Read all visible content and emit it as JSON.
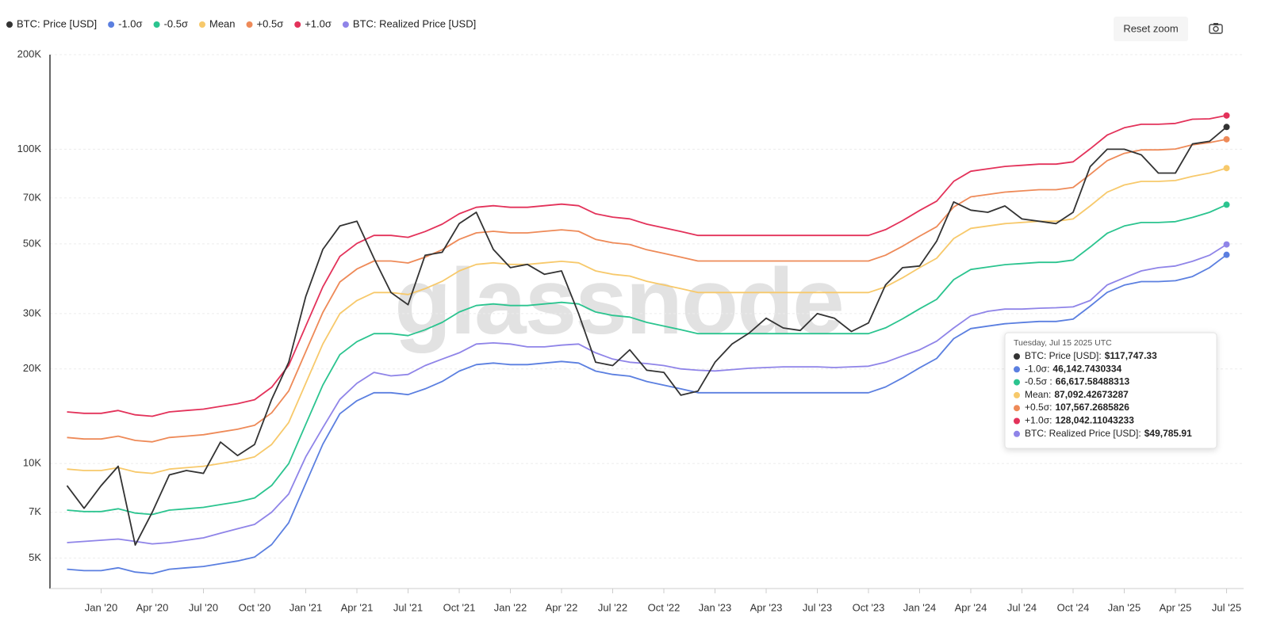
{
  "chart_data": {
    "type": "line",
    "log_scale": true,
    "grid": true,
    "legend": "top-left",
    "x": [
      "2019-11",
      "2019-12",
      "2020-01",
      "2020-02",
      "2020-03",
      "2020-04",
      "2020-05",
      "2020-06",
      "2020-07",
      "2020-08",
      "2020-09",
      "2020-10",
      "2020-11",
      "2020-12",
      "2021-01",
      "2021-02",
      "2021-03",
      "2021-04",
      "2021-05",
      "2021-06",
      "2021-07",
      "2021-08",
      "2021-09",
      "2021-10",
      "2021-11",
      "2021-12",
      "2022-01",
      "2022-02",
      "2022-03",
      "2022-04",
      "2022-05",
      "2022-06",
      "2022-07",
      "2022-08",
      "2022-09",
      "2022-10",
      "2022-11",
      "2022-12",
      "2023-01",
      "2023-02",
      "2023-03",
      "2023-04",
      "2023-05",
      "2023-06",
      "2023-07",
      "2023-08",
      "2023-09",
      "2023-10",
      "2023-11",
      "2023-12",
      "2024-01",
      "2024-02",
      "2024-03",
      "2024-04",
      "2024-05",
      "2024-06",
      "2024-07",
      "2024-08",
      "2024-09",
      "2024-10",
      "2024-11",
      "2024-12",
      "2025-01",
      "2025-02",
      "2025-03",
      "2025-04",
      "2025-05",
      "2025-06",
      "2025-07"
    ],
    "xlim": [
      "2019-10",
      "2025-08"
    ],
    "xticks": [
      {
        "value": "2020-01",
        "label": "Jan '20"
      },
      {
        "value": "2020-04",
        "label": "Apr '20"
      },
      {
        "value": "2020-07",
        "label": "Jul '20"
      },
      {
        "value": "2020-10",
        "label": "Oct '20"
      },
      {
        "value": "2021-01",
        "label": "Jan '21"
      },
      {
        "value": "2021-04",
        "label": "Apr '21"
      },
      {
        "value": "2021-07",
        "label": "Jul '21"
      },
      {
        "value": "2021-10",
        "label": "Oct '21"
      },
      {
        "value": "2022-01",
        "label": "Jan '22"
      },
      {
        "value": "2022-04",
        "label": "Apr '22"
      },
      {
        "value": "2022-07",
        "label": "Jul '22"
      },
      {
        "value": "2022-10",
        "label": "Oct '22"
      },
      {
        "value": "2023-01",
        "label": "Jan '23"
      },
      {
        "value": "2023-04",
        "label": "Apr '23"
      },
      {
        "value": "2023-07",
        "label": "Jul '23"
      },
      {
        "value": "2023-10",
        "label": "Oct '23"
      },
      {
        "value": "2024-01",
        "label": "Jan '24"
      },
      {
        "value": "2024-04",
        "label": "Apr '24"
      },
      {
        "value": "2024-07",
        "label": "Jul '24"
      },
      {
        "value": "2024-10",
        "label": "Oct '24"
      },
      {
        "value": "2025-01",
        "label": "Jan '25"
      },
      {
        "value": "2025-04",
        "label": "Apr '25"
      },
      {
        "value": "2025-07",
        "label": "Jul '25"
      }
    ],
    "ylim": [
      4000,
      200000
    ],
    "yticks": [
      {
        "value": 5000,
        "label": "5K"
      },
      {
        "value": 7000,
        "label": "7K"
      },
      {
        "value": 10000,
        "label": "10K"
      },
      {
        "value": 20000,
        "label": "20K"
      },
      {
        "value": 30000,
        "label": "30K"
      },
      {
        "value": 50000,
        "label": "50K"
      },
      {
        "value": 70000,
        "label": "70K"
      },
      {
        "value": 100000,
        "label": "100K"
      },
      {
        "value": 200000,
        "label": "200K"
      }
    ],
    "series": [
      {
        "name": "BTC: Price [USD]",
        "color": "#333333",
        "values": [
          8500,
          7200,
          8500,
          9800,
          5500,
          7000,
          9200,
          9500,
          9300,
          11700,
          10600,
          11500,
          16000,
          21000,
          34000,
          48000,
          57000,
          59000,
          45000,
          35000,
          32000,
          46000,
          47000,
          58000,
          63000,
          48000,
          42000,
          43000,
          40000,
          41000,
          30000,
          21000,
          20500,
          23000,
          19800,
          19500,
          16500,
          17000,
          21000,
          24000,
          26000,
          29000,
          27000,
          26500,
          30000,
          29000,
          26300,
          28000,
          37000,
          42000,
          42500,
          51000,
          68000,
          64000,
          63000,
          66000,
          60000,
          59000,
          58000,
          63000,
          88000,
          100000,
          100000,
          96000,
          84000,
          84000,
          104000,
          106000,
          117747.33
        ]
      },
      {
        "name": "-1.0σ",
        "color": "#5b7fe0",
        "values": [
          4608,
          4560,
          4560,
          4656,
          4512,
          4464,
          4608,
          4656,
          4704,
          4800,
          4896,
          5040,
          5520,
          6480,
          8640,
          11520,
          14400,
          15840,
          16800,
          16800,
          16560,
          17280,
          18240,
          19680,
          20640,
          20880,
          20640,
          20640,
          20880,
          21120,
          20880,
          19680,
          19200,
          18960,
          18240,
          17760,
          17280,
          16800,
          16800,
          16800,
          16800,
          16800,
          16800,
          16800,
          16800,
          16800,
          16800,
          16800,
          17520,
          18720,
          20160,
          21600,
          24960,
          26880,
          27360,
          27840,
          28080,
          28320,
          28320,
          28800,
          31680,
          35040,
          36960,
          37920,
          37920,
          38160,
          39360,
          42000,
          46142.7430334
        ]
      },
      {
        "name": "-0.5σ",
        "color": "#2bc48f",
        "values": [
          7104,
          7030,
          7030,
          7178,
          6956,
          6882,
          7104,
          7178,
          7252,
          7400,
          7548,
          7770,
          8510,
          9990,
          13320,
          17760,
          22200,
          24420,
          25900,
          25900,
          25530,
          26640,
          28120,
          30340,
          31820,
          32190,
          31820,
          31820,
          32190,
          32560,
          32190,
          30340,
          29600,
          29230,
          28120,
          27380,
          26640,
          25900,
          25900,
          25900,
          25900,
          25900,
          25900,
          25900,
          25900,
          25900,
          25900,
          25900,
          27010,
          28860,
          31080,
          33300,
          38480,
          41440,
          42180,
          42920,
          43290,
          43660,
          43660,
          44400,
          48840,
          54020,
          56980,
          58460,
          58460,
          58830,
          60680,
          63000,
          66617.58488313
        ]
      },
      {
        "name": "Mean",
        "color": "#f7c96b",
        "values": [
          9600,
          9500,
          9500,
          9700,
          9400,
          9300,
          9600,
          9700,
          9800,
          10000,
          10200,
          10500,
          11500,
          13500,
          18000,
          24000,
          30000,
          33000,
          35000,
          35000,
          34500,
          36000,
          38000,
          41000,
          43000,
          43500,
          43000,
          43000,
          43500,
          44000,
          43500,
          41000,
          40000,
          39500,
          38000,
          37000,
          36000,
          35000,
          35000,
          35000,
          35000,
          35000,
          35000,
          35000,
          35000,
          35000,
          35000,
          35000,
          36500,
          39000,
          42000,
          45000,
          52000,
          56000,
          57000,
          58000,
          58500,
          59000,
          59000,
          60000,
          66000,
          73000,
          77000,
          79000,
          79000,
          79500,
          82000,
          84000,
          87092.42673287
        ]
      },
      {
        "name": "+0.5σ",
        "color": "#ee8a58",
        "values": [
          12096,
          11970,
          11970,
          12222,
          11844,
          11718,
          12096,
          12222,
          12348,
          12600,
          12852,
          13230,
          14490,
          17010,
          22680,
          30240,
          37800,
          41580,
          44100,
          44100,
          43470,
          45360,
          47880,
          51660,
          54180,
          54810,
          54180,
          54180,
          54810,
          55440,
          54810,
          51660,
          50400,
          49770,
          47880,
          46620,
          45360,
          44100,
          44100,
          44100,
          44100,
          44100,
          44100,
          44100,
          44100,
          44100,
          44100,
          44100,
          45990,
          49140,
          52920,
          56700,
          65520,
          70560,
          71820,
          73080,
          73710,
          74340,
          74340,
          75600,
          83160,
          91980,
          97020,
          99540,
          99540,
          100170,
          103320,
          105000,
          107567.2685826
        ]
      },
      {
        "name": "+1.0σ",
        "color": "#e3325a",
        "values": [
          14592,
          14440,
          14440,
          14744,
          14288,
          14136,
          14592,
          14744,
          14896,
          15200,
          15504,
          15960,
          17480,
          20520,
          27360,
          36480,
          45600,
          50160,
          53200,
          53200,
          52440,
          54720,
          57760,
          62320,
          65360,
          66120,
          65360,
          65360,
          66120,
          66880,
          66120,
          62320,
          60800,
          60040,
          57760,
          56240,
          54720,
          53200,
          53200,
          53200,
          53200,
          53200,
          53200,
          53200,
          53200,
          53200,
          53200,
          53200,
          55480,
          59280,
          63840,
          68400,
          79040,
          85120,
          86640,
          88160,
          88920,
          89680,
          89680,
          91200,
          100320,
          110960,
          117040,
          120080,
          120080,
          120840,
          124640,
          125000,
          128042.11043233
        ]
      },
      {
        "name": "BTC: Realized Price [USD]",
        "color": "#8f84e8",
        "values": [
          5600,
          5650,
          5700,
          5750,
          5650,
          5550,
          5600,
          5700,
          5800,
          6000,
          6200,
          6400,
          7000,
          8000,
          10500,
          13000,
          16000,
          18000,
          19500,
          19000,
          19200,
          20500,
          21500,
          22500,
          24000,
          24200,
          24000,
          23500,
          23500,
          23800,
          24000,
          22500,
          21500,
          21000,
          20800,
          20500,
          20000,
          19800,
          19700,
          19900,
          20100,
          20200,
          20300,
          20300,
          20300,
          20200,
          20300,
          20400,
          21000,
          22000,
          23000,
          24500,
          27000,
          29500,
          30500,
          31000,
          31000,
          31200,
          31300,
          31500,
          33000,
          37000,
          39000,
          41000,
          42000,
          42500,
          44000,
          46000,
          49785.91
        ]
      }
    ],
    "tooltip": {
      "title": "Tuesday, Jul 15 2025 UTC",
      "rows": [
        {
          "label": "BTC: Price [USD]:",
          "value": "$117,747.33"
        },
        {
          "label": "-1.0σ:",
          "value": "46,142.7430334"
        },
        {
          "label": "-0.5σ :",
          "value": "66,617.58488313"
        },
        {
          "label": "Mean:",
          "value": "87,092.42673287"
        },
        {
          "label": "+0.5σ:",
          "value": "107,567.2685826"
        },
        {
          "label": "+1.0σ:",
          "value": "128,042.11043233"
        },
        {
          "label": "BTC: Realized Price [USD]:",
          "value": "$49,785.91"
        }
      ]
    },
    "watermark": "glassnode",
    "reset_button": "Reset zoom"
  }
}
